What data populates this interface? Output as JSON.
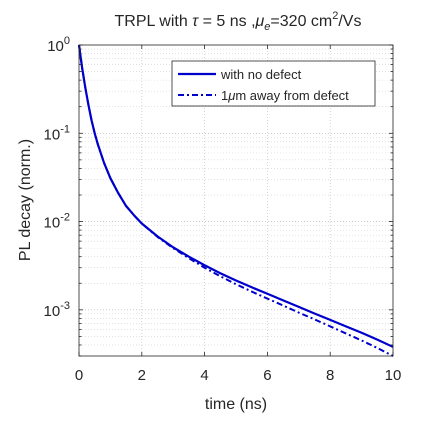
{
  "chart_data": {
    "type": "line",
    "title_parts": {
      "prefix": "TRPL with ",
      "tau": "τ",
      "tau_value": " = 5 ns ,",
      "mu": "μ",
      "mu_sub": "e",
      "mu_value": "=320 cm",
      "mu_exp": "2",
      "mu_unit": "/Vs"
    },
    "xlabel": "time (ns)",
    "ylabel": "PL decay (norm.)",
    "xlim": [
      0,
      10
    ],
    "ylim": [
      0.0003,
      1
    ],
    "yscale": "log",
    "grid": true,
    "legend_position": "top-right",
    "x_ticks": [
      0,
      2,
      4,
      6,
      8,
      10
    ],
    "y_ticks": [
      {
        "base": "10",
        "exp": "0",
        "value": 1
      },
      {
        "base": "10",
        "exp": "-1",
        "value": 0.1
      },
      {
        "base": "10",
        "exp": "-2",
        "value": 0.01
      },
      {
        "base": "10",
        "exp": "-3",
        "value": 0.001
      }
    ],
    "series": [
      {
        "name": "with no defect",
        "color": "#0000cc",
        "style": "solid",
        "x": [
          0,
          0.1,
          0.2,
          0.3,
          0.4,
          0.5,
          0.6,
          0.8,
          1.0,
          1.25,
          1.5,
          1.75,
          2,
          2.5,
          3,
          3.5,
          4,
          4.5,
          5,
          5.5,
          6,
          6.5,
          7,
          7.5,
          8,
          8.5,
          9,
          9.5,
          10
        ],
        "y": [
          1,
          0.55,
          0.33,
          0.21,
          0.14,
          0.1,
          0.075,
          0.046,
          0.031,
          0.021,
          0.015,
          0.0118,
          0.0095,
          0.0068,
          0.0051,
          0.004,
          0.0032,
          0.0026,
          0.00215,
          0.0018,
          0.00152,
          0.00128,
          0.00108,
          0.00091,
          0.00077,
          0.00065,
          0.00055,
          0.00046,
          0.00038
        ]
      },
      {
        "name": "1μm away from defect",
        "color": "#0000cc",
        "style": "dashdot",
        "x": [
          0,
          0.1,
          0.2,
          0.3,
          0.4,
          0.5,
          0.6,
          0.8,
          1.0,
          1.25,
          1.5,
          1.75,
          2,
          2.5,
          3,
          3.5,
          4,
          4.5,
          5,
          5.5,
          6,
          6.5,
          7,
          7.5,
          8,
          8.5,
          9,
          9.5,
          10
        ],
        "y": [
          1,
          0.55,
          0.33,
          0.21,
          0.14,
          0.1,
          0.075,
          0.046,
          0.031,
          0.021,
          0.015,
          0.0118,
          0.0095,
          0.0067,
          0.005,
          0.00385,
          0.003,
          0.0024,
          0.00195,
          0.00161,
          0.00134,
          0.00112,
          0.00093,
          0.00078,
          0.00065,
          0.00054,
          0.00045,
          0.00037,
          0.0003
        ]
      }
    ],
    "legend_labels": {
      "solid": "with no defect",
      "dashdot_prefix": "1",
      "dashdot_mu": "μ",
      "dashdot_suffix": "m away from defect"
    }
  }
}
